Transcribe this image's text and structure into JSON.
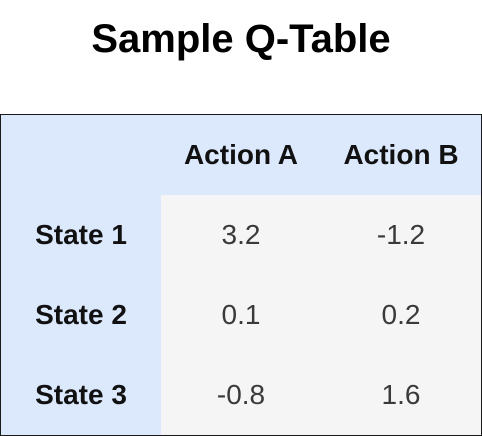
{
  "title": "Sample Q-Table",
  "columns": [
    "Action A",
    "Action B"
  ],
  "rows": [
    {
      "label": "State 1",
      "values": [
        "3.2",
        "-1.2"
      ]
    },
    {
      "label": "State 2",
      "values": [
        "0.1",
        "0.2"
      ]
    },
    {
      "label": "State 3",
      "values": [
        "-0.8",
        "1.6"
      ]
    }
  ],
  "colors": {
    "header_bg": "#dce8fc",
    "body_bg": "#f5f5f5"
  }
}
